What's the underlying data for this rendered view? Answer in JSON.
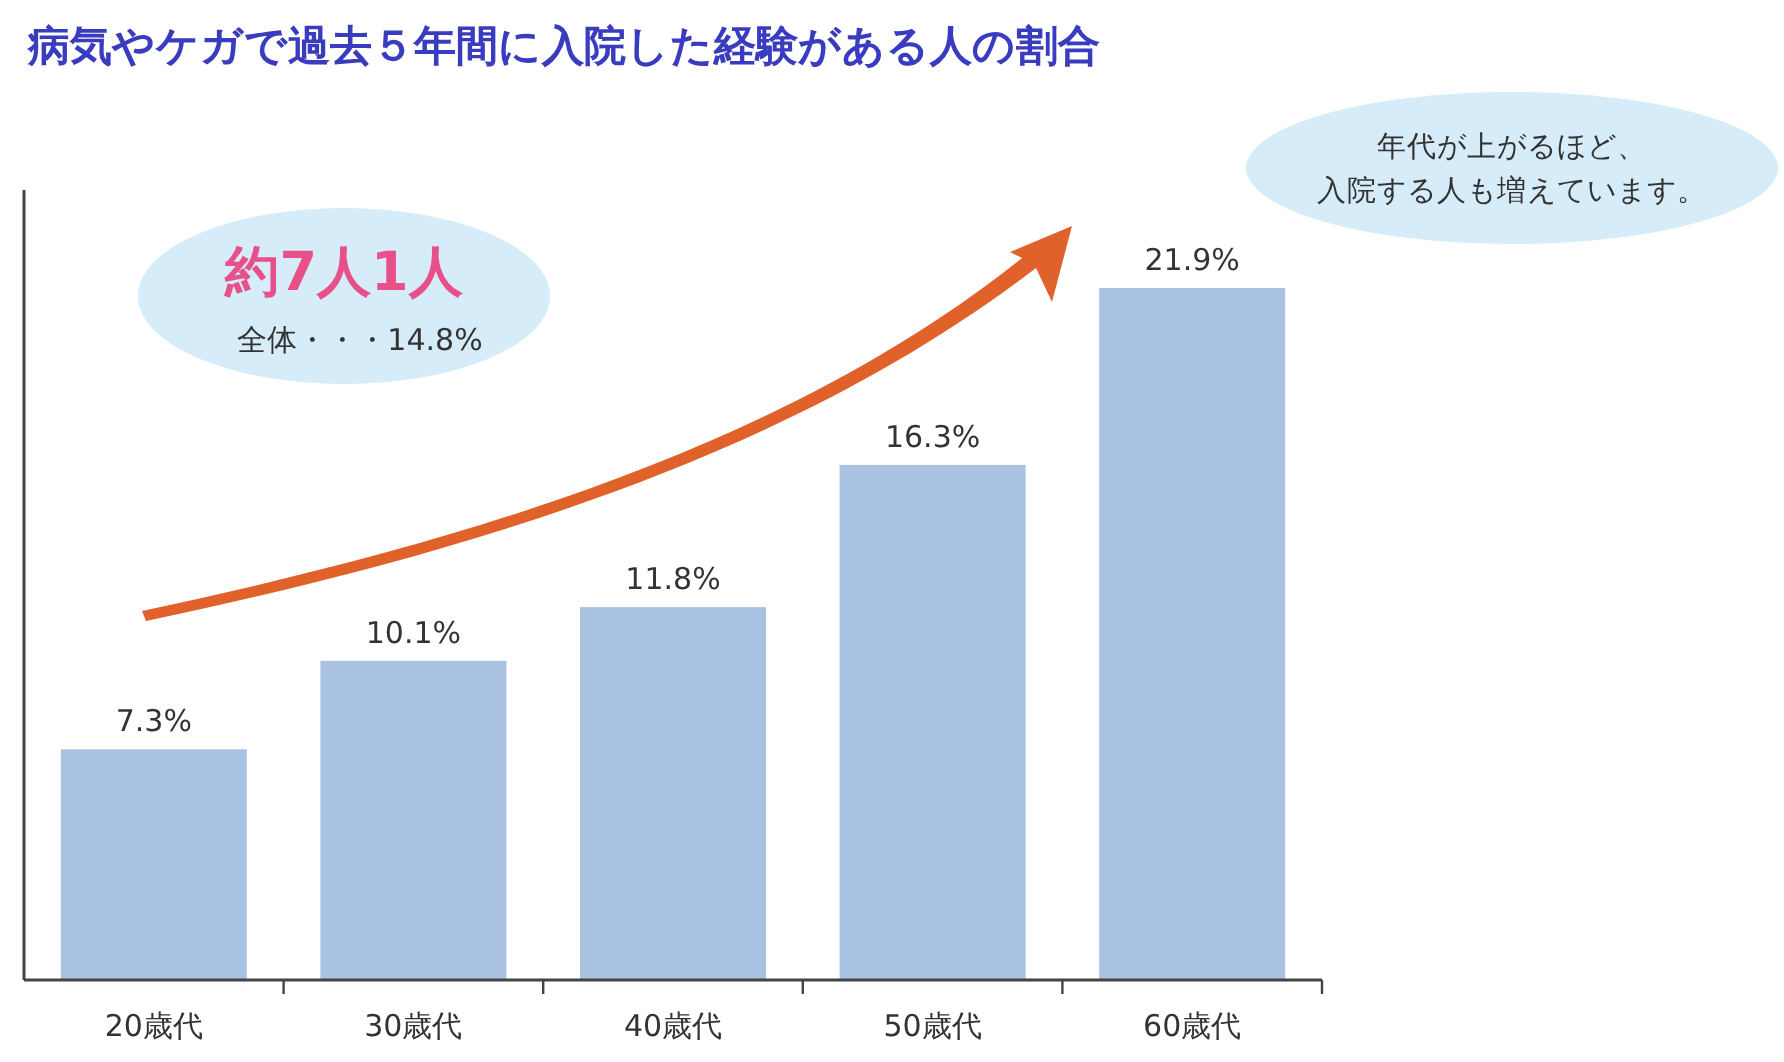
{
  "chart_data": {
    "type": "bar",
    "title": "病気やケガで過去５年間に入院した経験がある人の割合",
    "categories": [
      "20歳代",
      "30歳代",
      "40歳代",
      "50歳代",
      "60歳代"
    ],
    "values": [
      7.3,
      10.1,
      11.8,
      16.3,
      21.9
    ],
    "value_labels": [
      "7.3%",
      "10.1%",
      "11.8%",
      "16.3%",
      "21.9%"
    ],
    "color": "#a9c2e2",
    "ylim": [
      0,
      25
    ],
    "tick_labels": "x",
    "annotations": [
      "約7人1人",
      "全体・・・14.8%",
      "年代が上がるほど、",
      "入院する人も増えています。"
    ]
  }
}
